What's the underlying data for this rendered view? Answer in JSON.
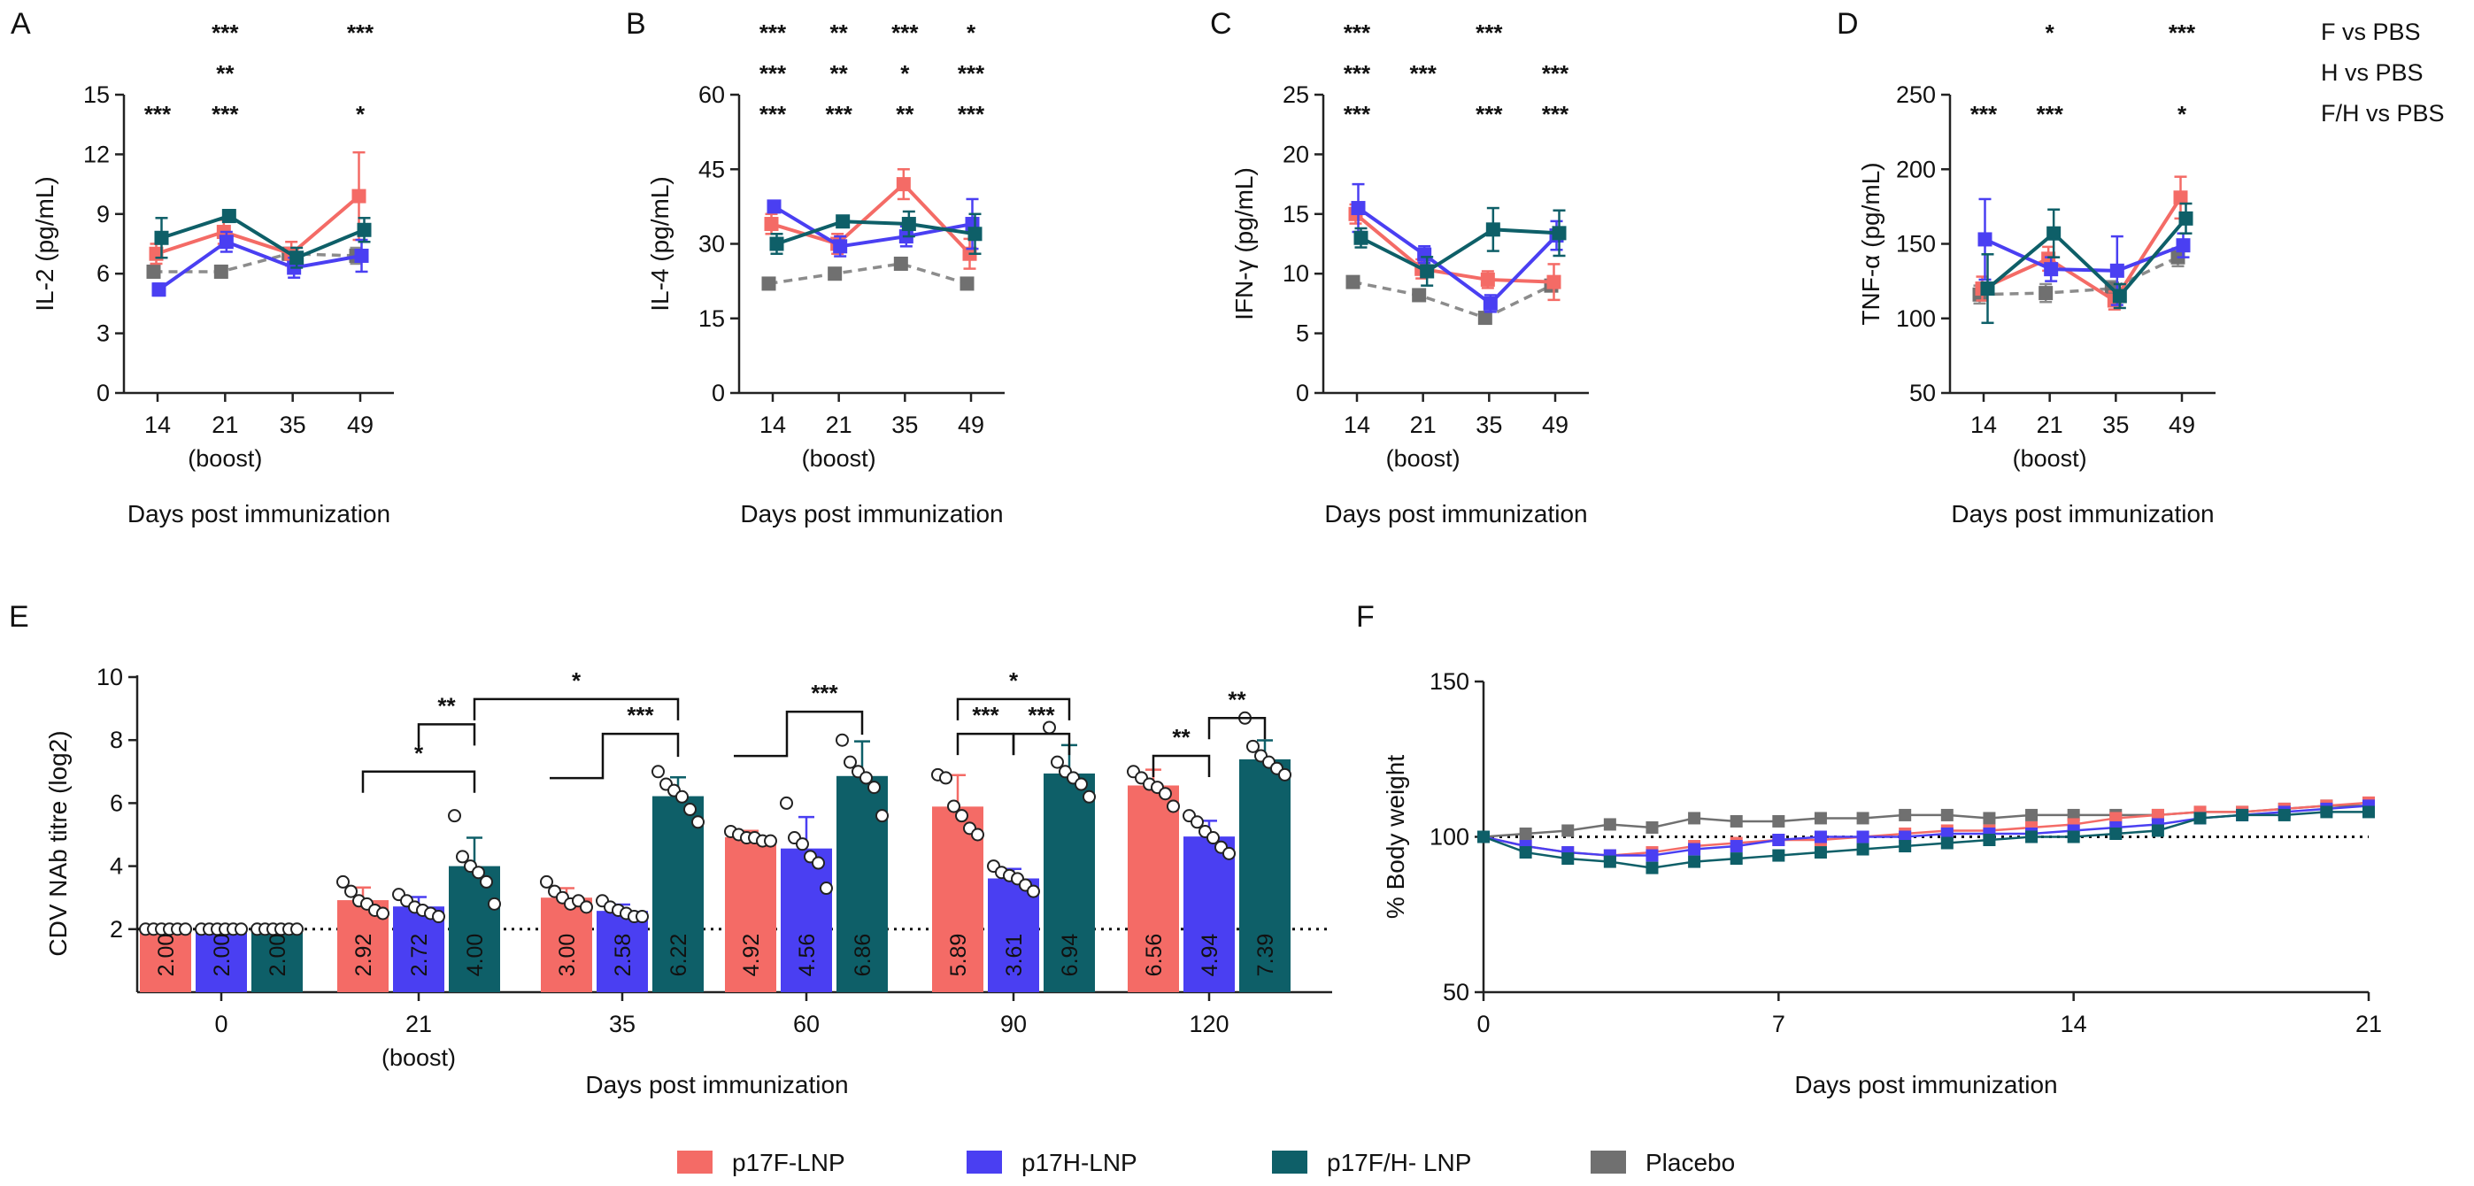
{
  "colors": {
    "p17F-LNP": "#f46b66",
    "p17H-LNP": "#4a3ff2",
    "p17F/H- LNP": "#0e5f68",
    "Placebo": "#8c8c8c",
    "placebo_marker": "#707070"
  },
  "chart_data": [
    {
      "id": "A",
      "panel_label": "A",
      "type": "line",
      "ylabel": "IL-2 (pg/mL)",
      "xlabel": "Days post immunization",
      "categories": [
        "14",
        "21",
        "35",
        "49"
      ],
      "category_sublabels": [
        "",
        "(boost)",
        "",
        ""
      ],
      "ylim": [
        0,
        15
      ],
      "yticks": [
        "0",
        "3",
        "6",
        "9",
        "12",
        "15"
      ],
      "series": [
        {
          "name": "Placebo",
          "values": [
            6.1,
            6.1,
            7.0,
            6.9
          ],
          "err": [
            0.3,
            0.3,
            0.3,
            0.4
          ]
        },
        {
          "name": "p17F-LNP",
          "values": [
            7.0,
            8.1,
            7.0,
            9.9
          ],
          "err": [
            0.5,
            0.6,
            0.6,
            2.2
          ]
        },
        {
          "name": "p17H-LNP",
          "values": [
            5.2,
            7.6,
            6.3,
            6.9
          ],
          "err": [
            0.3,
            0.5,
            0.5,
            0.8
          ]
        },
        {
          "name": "p17F/H- LNP",
          "values": [
            7.8,
            8.9,
            6.8,
            8.2
          ],
          "err": [
            1.0,
            0.3,
            0.5,
            0.6
          ]
        }
      ],
      "significance": [
        {
          "row": 1,
          "cat": 0,
          "text": "***"
        },
        {
          "row": 1,
          "cat": 1,
          "text": "***"
        },
        {
          "row": 1,
          "cat": 3,
          "text": "*"
        },
        {
          "row": 2,
          "cat": 1,
          "text": "**"
        },
        {
          "row": 3,
          "cat": 1,
          "text": "***"
        },
        {
          "row": 3,
          "cat": 3,
          "text": "***"
        }
      ]
    },
    {
      "id": "B",
      "panel_label": "B",
      "type": "line",
      "ylabel": "IL-4 (pg/mL)",
      "xlabel": "Days post immunization",
      "categories": [
        "14",
        "21",
        "35",
        "49"
      ],
      "category_sublabels": [
        "",
        "(boost)",
        "",
        ""
      ],
      "ylim": [
        0,
        60
      ],
      "yticks": [
        "0",
        "15",
        "30",
        "45",
        "60"
      ],
      "series": [
        {
          "name": "Placebo",
          "values": [
            22,
            24,
            26,
            22
          ],
          "err": [
            0.8,
            1.0,
            1.0,
            0.8
          ]
        },
        {
          "name": "p17F-LNP",
          "values": [
            34,
            30,
            42,
            28
          ],
          "err": [
            2.0,
            2.0,
            3.0,
            3.0
          ]
        },
        {
          "name": "p17H-LNP",
          "values": [
            37.5,
            29.5,
            31.5,
            34
          ],
          "err": [
            1.0,
            2.0,
            2.0,
            5.0
          ]
        },
        {
          "name": "p17F/H- LNP",
          "values": [
            30,
            34.5,
            34,
            32
          ],
          "err": [
            2.0,
            1.0,
            2.5,
            4.0
          ]
        }
      ],
      "significance": [
        {
          "row": 1,
          "cat": 0,
          "text": "***"
        },
        {
          "row": 1,
          "cat": 1,
          "text": "***"
        },
        {
          "row": 1,
          "cat": 2,
          "text": "**"
        },
        {
          "row": 1,
          "cat": 3,
          "text": "***"
        },
        {
          "row": 2,
          "cat": 0,
          "text": "***"
        },
        {
          "row": 2,
          "cat": 1,
          "text": "**"
        },
        {
          "row": 2,
          "cat": 2,
          "text": "*"
        },
        {
          "row": 2,
          "cat": 3,
          "text": "***"
        },
        {
          "row": 3,
          "cat": 0,
          "text": "***"
        },
        {
          "row": 3,
          "cat": 1,
          "text": "**"
        },
        {
          "row": 3,
          "cat": 2,
          "text": "***"
        },
        {
          "row": 3,
          "cat": 3,
          "text": "*"
        }
      ]
    },
    {
      "id": "C",
      "panel_label": "C",
      "type": "line",
      "ylabel": "IFN-γ (pg/mL)",
      "xlabel": "Days post immunization",
      "categories": [
        "14",
        "21",
        "35",
        "49"
      ],
      "category_sublabels": [
        "",
        "(boost)",
        "",
        ""
      ],
      "ylim": [
        0,
        25
      ],
      "yticks": [
        "0",
        "5",
        "10",
        "15",
        "20",
        "25"
      ],
      "series": [
        {
          "name": "Placebo",
          "values": [
            9.3,
            8.2,
            6.3,
            9.0
          ],
          "err": [
            0.4,
            0.4,
            0.4,
            0.4
          ]
        },
        {
          "name": "p17F-LNP",
          "values": [
            15,
            10.4,
            9.5,
            9.3
          ],
          "err": [
            0.8,
            0.8,
            0.7,
            1.5
          ]
        },
        {
          "name": "p17H-LNP",
          "values": [
            15.5,
            11.6,
            7.5,
            13.2
          ],
          "err": [
            2.0,
            0.7,
            0.7,
            1.2
          ]
        },
        {
          "name": "p17F/H- LNP",
          "values": [
            13.0,
            10.2,
            13.7,
            13.4
          ],
          "err": [
            0.8,
            1.2,
            1.8,
            1.9
          ]
        }
      ],
      "significance": [
        {
          "row": 1,
          "cat": 0,
          "text": "***"
        },
        {
          "row": 1,
          "cat": 2,
          "text": "***"
        },
        {
          "row": 1,
          "cat": 3,
          "text": "***"
        },
        {
          "row": 2,
          "cat": 0,
          "text": "***"
        },
        {
          "row": 2,
          "cat": 1,
          "text": "***"
        },
        {
          "row": 2,
          "cat": 3,
          "text": "***"
        },
        {
          "row": 3,
          "cat": 0,
          "text": "***"
        },
        {
          "row": 3,
          "cat": 2,
          "text": "***"
        }
      ]
    },
    {
      "id": "D",
      "panel_label": "D",
      "type": "line",
      "ylabel": "TNF-α (pg/mL)",
      "xlabel": "Days post immunization",
      "categories": [
        "14",
        "21",
        "35",
        "49"
      ],
      "category_sublabels": [
        "",
        "(boost)",
        "",
        ""
      ],
      "ylim": [
        50,
        250
      ],
      "yticks": [
        "50",
        "100",
        "150",
        "200",
        "250"
      ],
      "series": [
        {
          "name": "Placebo",
          "values": [
            116,
            117,
            120,
            141
          ],
          "err": [
            6,
            6,
            5,
            6
          ]
        },
        {
          "name": "p17F-LNP",
          "values": [
            120,
            140,
            112,
            181
          ],
          "err": [
            8,
            8,
            6,
            14
          ]
        },
        {
          "name": "p17H-LNP",
          "values": [
            153,
            133,
            132,
            149
          ],
          "err": [
            27,
            8,
            23,
            8
          ]
        },
        {
          "name": "p17F/H- LNP",
          "values": [
            120,
            157,
            115,
            167
          ],
          "err": [
            23,
            16,
            8,
            10
          ]
        }
      ],
      "significance": [
        {
          "row": 1,
          "cat": 0,
          "text": "***"
        },
        {
          "row": 1,
          "cat": 1,
          "text": "***"
        },
        {
          "row": 1,
          "cat": 3,
          "text": "*"
        },
        {
          "row": 3,
          "cat": 1,
          "text": "*"
        },
        {
          "row": 3,
          "cat": 3,
          "text": "***"
        }
      ],
      "comparison_labels": [
        "F vs PBS",
        "H vs PBS",
        "F/H vs PBS"
      ]
    },
    {
      "id": "E",
      "panel_label": "E",
      "type": "bar",
      "ylabel": "CDV NAb titre (log2)",
      "xlabel": "Days post immunization",
      "categories": [
        "0",
        "21",
        "35",
        "60",
        "90",
        "120"
      ],
      "category_sublabels": [
        "",
        "(boost)",
        "",
        "",
        "",
        ""
      ],
      "ylim": [
        0,
        10
      ],
      "yticks": [
        "2",
        "4",
        "6",
        "8",
        "10"
      ],
      "detection_limit": 2,
      "series": [
        {
          "name": "p17F-LNP",
          "values": [
            2.0,
            2.92,
            3.0,
            4.92,
            5.89,
            6.56
          ],
          "labels": [
            "2.00",
            "2.92",
            "3.00",
            "4.92",
            "5.89",
            "6.56"
          ],
          "err": [
            0,
            0.4,
            0.3,
            0.2,
            1.0,
            0.5
          ]
        },
        {
          "name": "p17H-LNP",
          "values": [
            2.0,
            2.72,
            2.58,
            4.56,
            3.61,
            4.94
          ],
          "labels": [
            "2.00",
            "2.72",
            "2.58",
            "4.56",
            "3.61",
            "4.94"
          ],
          "err": [
            0,
            0.3,
            0.2,
            1.0,
            0.3,
            0.5
          ]
        },
        {
          "name": "p17F/H- LNP",
          "values": [
            2.0,
            4.0,
            6.22,
            6.86,
            6.94,
            7.39
          ],
          "labels": [
            "2.00",
            "4.00",
            "6.22",
            "6.86",
            "6.94",
            "7.39"
          ],
          "err": [
            0,
            0.9,
            0.6,
            1.1,
            0.9,
            0.6
          ]
        }
      ],
      "points": [
        [
          [
            2,
            2,
            2,
            2,
            2,
            2
          ],
          [
            2,
            2,
            2,
            2,
            2,
            2
          ],
          [
            2,
            2,
            2,
            2,
            2,
            2
          ]
        ],
        [
          [
            3.5,
            3.2,
            2.9,
            2.8,
            2.6,
            2.5
          ],
          [
            3.1,
            2.9,
            2.7,
            2.6,
            2.5,
            2.4
          ],
          [
            5.6,
            4.3,
            4.0,
            3.8,
            3.5,
            2.8
          ]
        ],
        [
          [
            3.5,
            3.2,
            3.0,
            2.8,
            2.9,
            2.7
          ],
          [
            2.9,
            2.7,
            2.6,
            2.5,
            2.4,
            2.4
          ],
          [
            7.0,
            6.6,
            6.4,
            6.2,
            5.8,
            5.4
          ]
        ],
        [
          [
            5.1,
            5.0,
            4.9,
            4.9,
            4.8,
            4.8
          ],
          [
            6.0,
            4.9,
            4.7,
            4.3,
            4.1,
            3.3
          ],
          [
            8.0,
            7.3,
            7.0,
            6.8,
            6.5,
            5.6
          ]
        ],
        [
          [
            6.9,
            6.8,
            5.9,
            5.6,
            5.2,
            5.0
          ],
          [
            4.0,
            3.8,
            3.7,
            3.6,
            3.4,
            3.2
          ],
          [
            8.4,
            7.3,
            7.0,
            6.8,
            6.6,
            6.2
          ]
        ],
        [
          [
            7.0,
            6.8,
            6.6,
            6.5,
            6.3,
            5.9
          ],
          [
            5.6,
            5.4,
            5.1,
            4.9,
            4.6,
            4.4
          ],
          [
            8.7,
            7.8,
            7.5,
            7.3,
            7.1,
            6.9
          ]
        ]
      ],
      "brackets": [
        {
          "id": "br-21-a",
          "stars": "*",
          "from_cat": 1,
          "from_series": 0,
          "to_cat": 1,
          "to_series": 2,
          "level": 7.0
        },
        {
          "id": "br-21-b",
          "stars": "**",
          "from_cat": 1,
          "from_series": 1,
          "to_cat": 1,
          "to_series": 2,
          "level": 8.5
        },
        {
          "id": "br-21-35",
          "stars": "*",
          "from_cat": 1,
          "from_series": 2,
          "to_cat": 2,
          "to_series": 2,
          "level": 9.3
        },
        {
          "id": "br-35",
          "stars": "***",
          "from_cat": 2,
          "from_series": 1,
          "to_cat": 2,
          "to_series": 2,
          "level": 8.2,
          "nested": true
        },
        {
          "id": "br-60",
          "stars": "***",
          "from_cat": 3,
          "from_series": 1,
          "to_cat": 3,
          "to_series": 2,
          "level": 8.9,
          "nested": true
        },
        {
          "id": "br-90-a",
          "stars": "***",
          "from_cat": 4,
          "from_series": 0,
          "to_cat": 4,
          "to_series": 1,
          "level": 8.2
        },
        {
          "id": "br-90-b",
          "stars": "***",
          "from_cat": 4,
          "from_series": 1,
          "to_cat": 4,
          "to_series": 2,
          "level": 8.2
        },
        {
          "id": "br-90-c",
          "stars": "*",
          "from_cat": 4,
          "from_series": 0,
          "to_cat": 4,
          "to_series": 2,
          "level": 9.3
        },
        {
          "id": "br-120-a",
          "stars": "**",
          "from_cat": 5,
          "from_series": 0,
          "to_cat": 5,
          "to_series": 1,
          "level": 7.5
        },
        {
          "id": "br-120-b",
          "stars": "**",
          "from_cat": 5,
          "from_series": 1,
          "to_cat": 5,
          "to_series": 2,
          "level": 8.7
        }
      ]
    },
    {
      "id": "F",
      "panel_label": "F",
      "type": "line",
      "ylabel": "% Body weight",
      "xlabel": "Days post immunization",
      "xlim": [
        0,
        21
      ],
      "xticks": [
        "0",
        "7",
        "14",
        "21"
      ],
      "ylim": [
        50,
        150
      ],
      "yticks": [
        "50",
        "100",
        "150"
      ],
      "reference_line": 100,
      "x": [
        0,
        1,
        2,
        3,
        4,
        5,
        6,
        7,
        8,
        9,
        10,
        11,
        12,
        13,
        14,
        15,
        16,
        17,
        18,
        19,
        20,
        21
      ],
      "series": [
        {
          "name": "Placebo",
          "values": [
            100,
            101,
            102,
            104,
            103,
            106,
            105,
            105,
            106,
            106,
            107,
            107,
            106,
            107,
            107,
            107,
            107,
            108,
            108,
            109,
            110,
            110
          ]
        },
        {
          "name": "p17F-LNP",
          "values": [
            100,
            97,
            95,
            94,
            95,
            97,
            98,
            99,
            99,
            100,
            101,
            102,
            102,
            103,
            104,
            106,
            107,
            108,
            108,
            109,
            110,
            111
          ]
        },
        {
          "name": "p17H-LNP",
          "values": [
            100,
            97,
            95,
            94,
            94,
            96,
            97,
            99,
            100,
            100,
            100,
            101,
            101,
            101,
            102,
            103,
            104,
            106,
            107,
            108,
            109,
            110
          ]
        },
        {
          "name": "p17F/H- LNP",
          "values": [
            100,
            95,
            93,
            92,
            90,
            92,
            93,
            94,
            95,
            96,
            97,
            98,
            99,
            100,
            100,
            101,
            102,
            106,
            107,
            107,
            108,
            108
          ]
        }
      ]
    }
  ],
  "legend": [
    {
      "name": "p17F-LNP",
      "label": "p17F-LNP"
    },
    {
      "name": "p17H-LNP",
      "label": "p17H-LNP"
    },
    {
      "name": "p17F/H- LNP",
      "label": "p17F/H- LNP"
    },
    {
      "name": "Placebo",
      "label": "Placebo"
    }
  ]
}
